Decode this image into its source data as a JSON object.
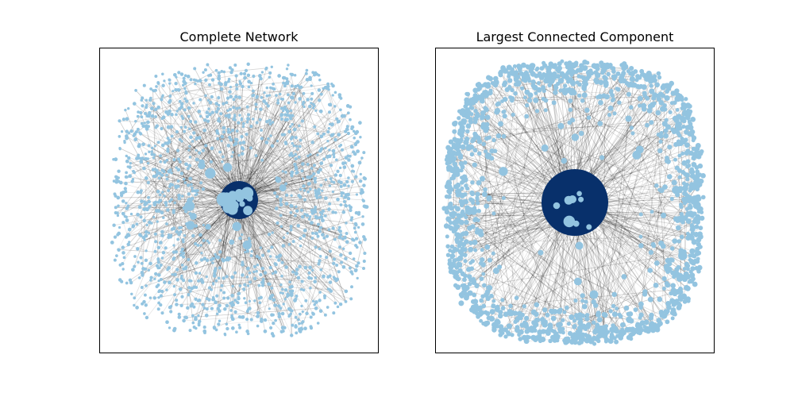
{
  "figure": {
    "background": "#ffffff"
  },
  "chart_data": [
    {
      "type": "network",
      "title": "Complete Network",
      "node_color": "#93c4e0",
      "hub_color": "#08306b",
      "edge_color": "#000000",
      "hub_count": 1,
      "axes_ticks": "none"
    },
    {
      "type": "network",
      "title": "Largest Connected Component",
      "node_color": "#93c4e0",
      "hub_color": "#08306b",
      "edge_color": "#000000",
      "hub_count": 1,
      "axes_ticks": "none"
    }
  ]
}
